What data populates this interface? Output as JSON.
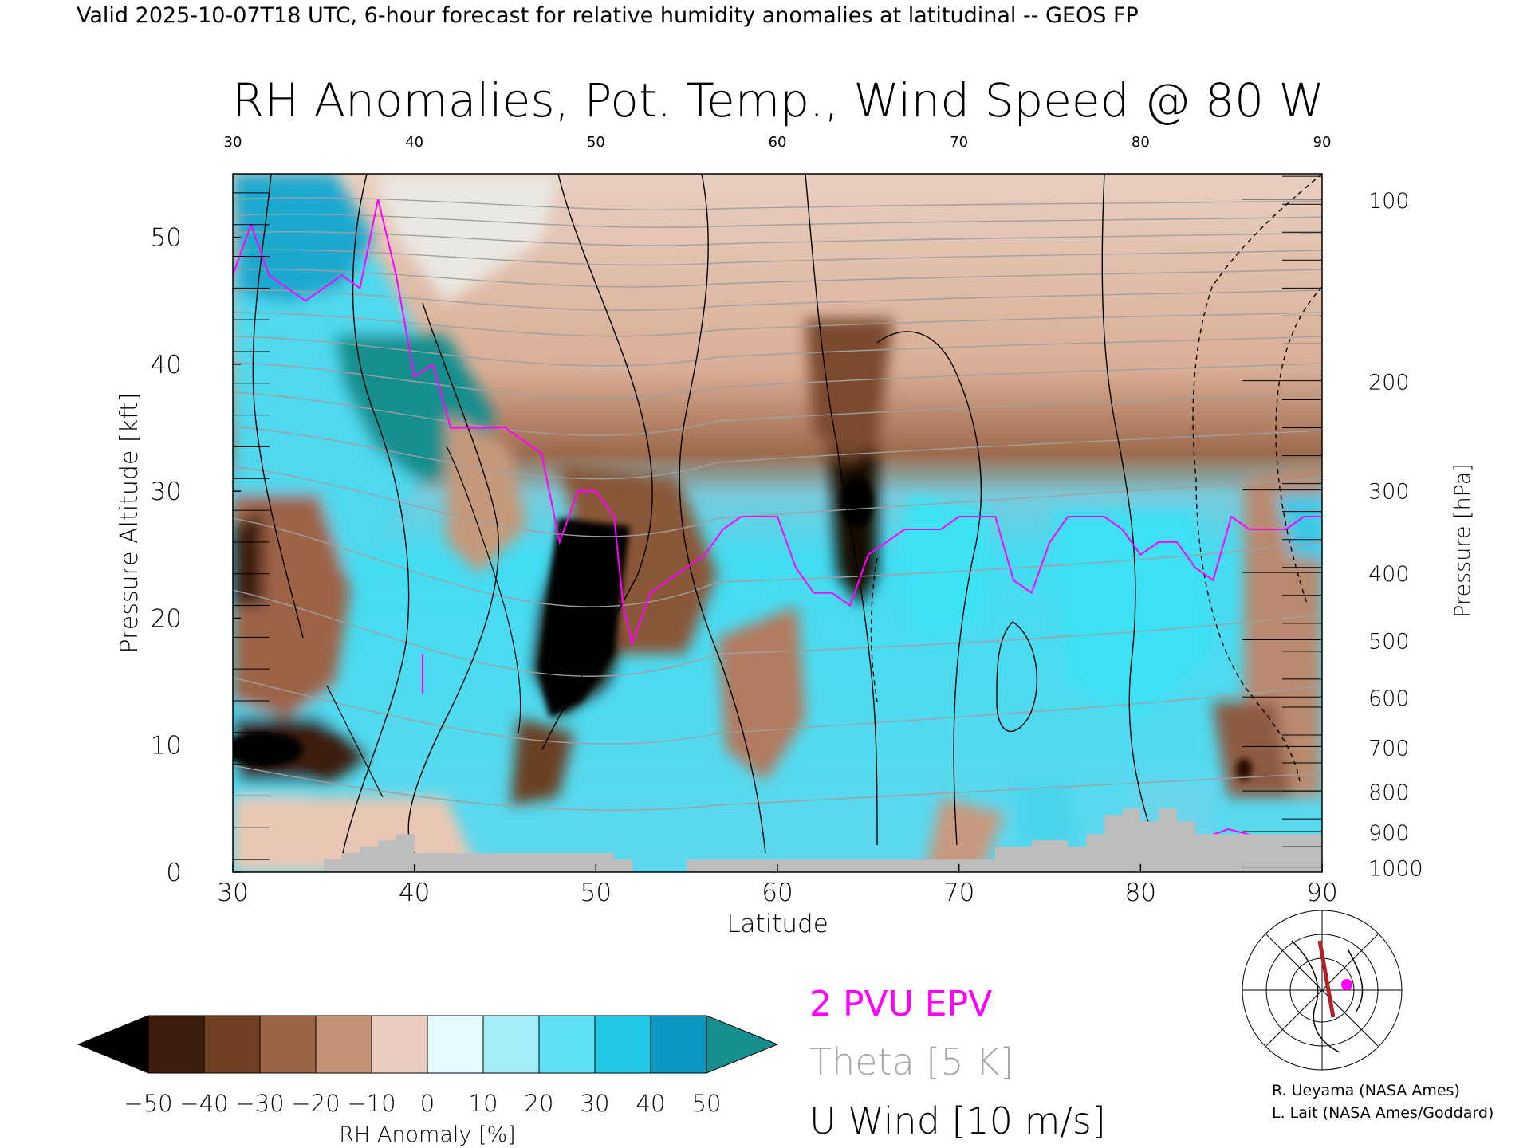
{
  "header": "Valid 2025-10-07T18 UTC, 6-hour forecast for relative humidity anomalies at latitudinal -- GEOS FP",
  "colors": {
    "epv": "#ff00ff",
    "theta": "#a0a0a0",
    "wind": "#000000",
    "terrain": "#bdbdbd"
  },
  "legend": {
    "epv": "2 PVU EPV",
    "theta": "Theta [5 K]",
    "wind": "U Wind [10 m/s]"
  },
  "colorbar": {
    "label": "RH Anomaly [%]",
    "ticks": [
      "−50",
      "−40",
      "−30",
      "−20",
      "−10",
      "0",
      "10",
      "20",
      "30",
      "40",
      "50"
    ],
    "colors": [
      "#000000",
      "#3c1c0a",
      "#6e3f20",
      "#9a6545",
      "#c39274",
      "#e8ccbd",
      "#e4fafe",
      "#a3eef8",
      "#5ee1f4",
      "#22c8e6",
      "#0c98c0",
      "#168e8e"
    ]
  },
  "credits": {
    "line1": "R. Ueyama (NASA Ames)",
    "line2": "L. Lait (NASA Ames/Goddard)"
  },
  "chart_data": {
    "type": "heatmap",
    "title": "RH Anomalies, Pot. Temp., Wind Speed @ 80 W",
    "xlabel": "Latitude",
    "ylabel": "Pressure Altitude [kft]",
    "y2label": "Pressure [hPa]",
    "xlim": [
      30,
      90
    ],
    "ylim": [
      0,
      55
    ],
    "xticks": [
      30,
      40,
      50,
      60,
      70,
      80,
      90
    ],
    "yticks": [
      0,
      10,
      20,
      30,
      40,
      50
    ],
    "pressure_ticks": [
      {
        "hpa": 100,
        "kft": 53
      },
      {
        "hpa": 200,
        "kft": 38.7
      },
      {
        "hpa": 300,
        "kft": 30.1
      },
      {
        "hpa": 400,
        "kft": 23.6
      },
      {
        "hpa": 500,
        "kft": 18.3
      },
      {
        "hpa": 600,
        "kft": 13.8
      },
      {
        "hpa": 700,
        "kft": 9.9
      },
      {
        "hpa": 800,
        "kft": 6.4
      },
      {
        "hpa": 900,
        "kft": 3.2
      },
      {
        "hpa": 1000,
        "kft": 0.4
      }
    ],
    "epv_2pvu": {
      "lat": [
        30,
        31,
        32,
        33,
        34,
        35,
        36,
        37,
        38,
        39,
        40,
        41,
        42,
        43,
        44,
        45,
        46,
        47,
        48,
        49,
        50,
        51,
        51.5,
        52,
        53,
        54,
        55,
        56,
        57,
        58,
        59,
        60,
        61,
        62,
        63,
        64,
        65,
        66,
        67,
        68,
        69,
        70,
        71,
        72,
        73,
        74,
        75,
        76,
        77,
        78,
        79,
        80,
        81,
        82,
        83,
        84,
        85,
        86,
        87,
        88,
        89,
        90
      ],
      "kft": [
        47,
        51,
        47,
        46,
        45,
        46,
        47,
        46,
        53,
        47,
        39,
        40,
        35,
        35,
        35,
        35,
        34,
        33,
        26,
        30,
        30,
        28,
        21,
        18,
        22,
        23,
        24,
        25,
        27,
        28,
        28,
        28,
        24,
        22,
        22,
        21,
        25,
        26,
        27,
        27,
        27,
        28,
        28,
        28,
        23,
        22,
        26,
        28,
        28,
        28,
        27,
        25,
        26,
        26,
        24,
        23,
        28,
        27,
        27,
        27,
        28,
        28
      ]
    },
    "theta_levels_K": [
      280,
      290,
      300,
      310,
      320,
      330,
      340,
      350,
      360,
      370,
      380,
      390,
      400,
      410,
      420
    ],
    "u_wind_contours_ms": [
      0,
      10,
      30,
      50,
      -10
    ],
    "terrain_kft": {
      "lat": [
        30,
        34,
        35,
        36,
        37,
        38,
        39,
        40,
        42,
        45,
        47,
        50,
        51,
        52,
        55,
        57,
        60,
        65,
        70,
        72,
        74,
        76,
        77,
        78,
        79,
        80,
        81,
        82,
        83,
        90
      ],
      "kft": [
        0,
        0,
        1,
        1.5,
        2,
        2.5,
        3,
        1.5,
        1.5,
        1.5,
        1.5,
        1.5,
        1,
        0,
        1,
        1,
        1,
        1,
        1,
        2,
        2.5,
        2,
        3,
        4.5,
        5,
        4,
        5,
        4,
        3,
        0
      ]
    }
  }
}
